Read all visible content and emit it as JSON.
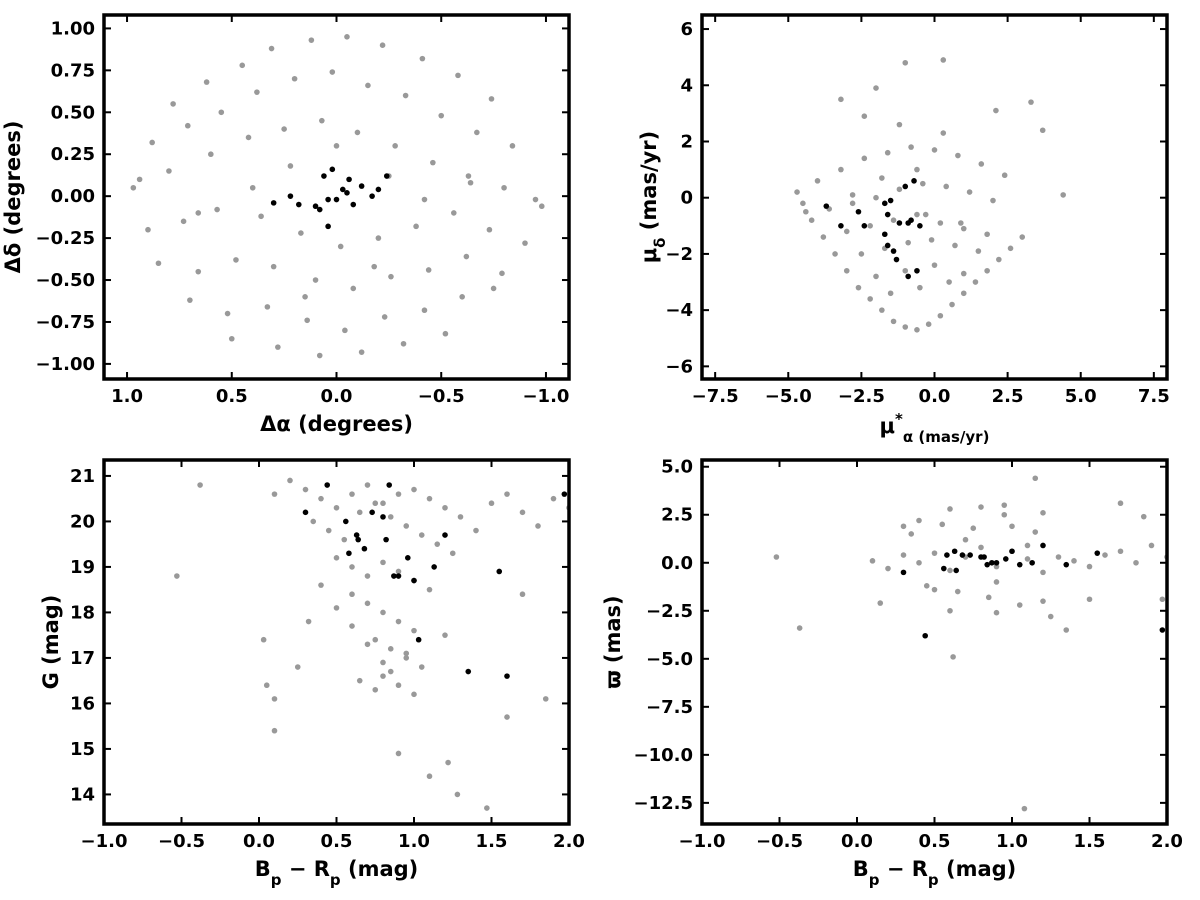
{
  "chart_data": [
    {
      "id": "p1",
      "type": "scatter",
      "xlabel": "Δα (degrees)",
      "ylabel": "Δδ (degrees)",
      "xlim": [
        1.11,
        -1.11
      ],
      "ylim": [
        -1.09,
        1.08
      ],
      "xticks": [
        1.0,
        0.5,
        0.0,
        -0.5,
        -1.0
      ],
      "xtick_labels": [
        "1.0",
        "0.5",
        "0.0",
        "−0.5",
        "−1.0"
      ],
      "yticks": [
        1.0,
        0.75,
        0.5,
        0.25,
        0.0,
        -0.25,
        -0.5,
        -0.75,
        -1.0
      ],
      "ytick_labels": [
        "1.00",
        "0.75",
        "0.50",
        "0.25",
        "0.00",
        "−0.25",
        "−0.50",
        "−0.75",
        "−1.00"
      ],
      "series": [
        {
          "color": "#999999",
          "x": [
            0.78,
            0.62,
            0.45,
            0.31,
            0.12,
            -0.05,
            -0.22,
            -0.41,
            -0.58,
            -0.74,
            0.88,
            0.71,
            0.55,
            0.38,
            0.2,
            0.02,
            -0.15,
            -0.33,
            -0.5,
            -0.67,
            -0.84,
            0.94,
            0.8,
            0.6,
            0.42,
            0.25,
            0.07,
            -0.1,
            -0.28,
            -0.46,
            -0.63,
            -0.8,
            -0.95,
            0.9,
            0.73,
            0.57,
            0.36,
            0.17,
            -0.02,
            -0.2,
            -0.38,
            -0.56,
            -0.73,
            -0.9,
            0.85,
            0.66,
            0.48,
            0.3,
            0.1,
            -0.08,
            -0.26,
            -0.44,
            -0.62,
            -0.79,
            0.7,
            0.52,
            0.33,
            0.14,
            -0.04,
            -0.23,
            -0.42,
            -0.6,
            -0.75,
            0.5,
            0.28,
            0.08,
            -0.12,
            -0.32,
            -0.52,
            0.97,
            -0.98,
            0.0,
            0.15,
            -0.18,
            0.4,
            -0.42,
            0.66,
            -0.64,
            0.22,
            -0.25
          ],
          "y": [
            0.55,
            0.68,
            0.78,
            0.88,
            0.93,
            0.95,
            0.9,
            0.82,
            0.72,
            0.58,
            0.32,
            0.42,
            0.5,
            0.62,
            0.7,
            0.74,
            0.66,
            0.6,
            0.48,
            0.38,
            0.3,
            0.1,
            0.15,
            0.25,
            0.35,
            0.4,
            0.45,
            0.38,
            0.3,
            0.2,
            0.12,
            0.05,
            -0.02,
            -0.2,
            -0.15,
            -0.08,
            -0.12,
            -0.22,
            -0.3,
            -0.25,
            -0.18,
            -0.1,
            -0.2,
            -0.28,
            -0.4,
            -0.45,
            -0.38,
            -0.42,
            -0.5,
            -0.55,
            -0.48,
            -0.44,
            -0.36,
            -0.46,
            -0.62,
            -0.7,
            -0.66,
            -0.74,
            -0.8,
            -0.72,
            -0.68,
            -0.6,
            -0.55,
            -0.85,
            -0.9,
            -0.95,
            -0.93,
            -0.88,
            -0.82,
            0.05,
            -0.06,
            0.3,
            -0.6,
            -0.42,
            0.05,
            -0.02,
            -0.1,
            0.08,
            0.18,
            0.12
          ]
        },
        {
          "color": "#000000",
          "x": [
            0.3,
            0.22,
            0.18,
            0.08,
            0.06,
            0.04,
            0.02,
            0.0,
            -0.03,
            -0.05,
            -0.08,
            -0.12,
            -0.17,
            -0.2,
            -0.24,
            0.1,
            -0.06,
            0.04
          ],
          "y": [
            -0.04,
            0.0,
            -0.05,
            -0.08,
            0.12,
            -0.18,
            0.16,
            -0.02,
            0.04,
            0.02,
            -0.05,
            0.06,
            0.0,
            0.04,
            0.12,
            -0.06,
            0.1,
            -0.02
          ]
        }
      ]
    },
    {
      "id": "p2",
      "type": "scatter",
      "xlabel": "μα* (mas/yr)",
      "ylabel": "μδ (mas/yr)",
      "xlim": [
        -7.95,
        7.95
      ],
      "ylim": [
        -6.45,
        6.5
      ],
      "xticks": [
        -7.5,
        -5.0,
        -2.5,
        0.0,
        2.5,
        5.0,
        7.5
      ],
      "xtick_labels": [
        "−7.5",
        "−5.0",
        "−2.5",
        "0.0",
        "2.5",
        "5.0",
        "7.5"
      ],
      "yticks": [
        6,
        4,
        2,
        0,
        -2,
        -4,
        -6
      ],
      "ytick_labels": [
        "6",
        "4",
        "2",
        "0",
        "−2",
        "−4",
        "−6"
      ],
      "series": [
        {
          "color": "#999999",
          "x": [
            -4.5,
            -4.2,
            -3.8,
            -3.4,
            -3.0,
            -2.6,
            -2.2,
            -1.8,
            -1.4,
            -1.0,
            -0.6,
            -0.2,
            0.2,
            0.6,
            1.0,
            1.4,
            1.8,
            2.2,
            2.6,
            3.0,
            -4.7,
            -4.0,
            -3.2,
            -2.4,
            -1.6,
            -0.8,
            0.0,
            0.8,
            1.6,
            2.4,
            -3.6,
            -2.8,
            -2.0,
            -1.2,
            -0.4,
            0.4,
            1.2,
            2.0,
            -3.0,
            -2.2,
            -1.4,
            -0.6,
            0.2,
            1.0,
            1.8,
            -2.5,
            -1.7,
            -0.9,
            -0.1,
            0.7,
            1.5,
            -2.0,
            -1.0,
            0.0,
            1.0,
            -1.5,
            -0.5,
            0.5,
            -3.2,
            -2.0,
            -1.0,
            0.3,
            3.7,
            4.4,
            3.3,
            2.1,
            0.3,
            -1.2,
            -2.4,
            -0.6,
            -1.8,
            -2.8,
            -0.3,
            0.9,
            -4.4
          ],
          "y": [
            -0.2,
            -0.8,
            -1.4,
            -2.0,
            -2.6,
            -3.2,
            -3.6,
            -4.0,
            -4.4,
            -4.6,
            -4.7,
            -4.5,
            -4.2,
            -3.8,
            -3.4,
            -3.0,
            -2.6,
            -2.2,
            -1.8,
            -1.4,
            0.2,
            0.6,
            1.0,
            1.4,
            1.6,
            1.8,
            1.7,
            1.5,
            1.2,
            0.8,
            -0.4,
            -0.2,
            0.0,
            0.3,
            0.5,
            0.4,
            0.2,
            -0.1,
            -1.2,
            -1.0,
            -0.8,
            -0.6,
            -0.9,
            -1.1,
            -1.3,
            -2.0,
            -1.8,
            -1.6,
            -1.5,
            -1.7,
            -1.9,
            -2.8,
            -2.6,
            -2.4,
            -2.7,
            -3.4,
            -3.2,
            -3.0,
            3.5,
            3.9,
            4.8,
            4.9,
            2.4,
            0.1,
            3.4,
            3.1,
            2.3,
            2.6,
            2.9,
            1.0,
            0.7,
            0.1,
            -0.6,
            -0.9,
            -0.5
          ]
        },
        {
          "color": "#000000",
          "x": [
            -3.7,
            -3.2,
            -2.6,
            -2.4,
            -1.7,
            -1.7,
            -1.6,
            -1.5,
            -1.4,
            -1.3,
            -1.2,
            -1.0,
            -0.9,
            -0.8,
            -0.7,
            -0.6,
            -0.5,
            -1.6,
            -0.9
          ],
          "y": [
            -0.3,
            -1.0,
            -0.5,
            -1.0,
            -0.2,
            -1.3,
            -1.7,
            -0.1,
            -1.9,
            -2.2,
            -0.9,
            0.4,
            -2.8,
            -0.8,
            0.6,
            -2.6,
            -1.0,
            -0.6,
            -0.9
          ]
        }
      ]
    },
    {
      "id": "p3",
      "type": "scatter",
      "xlabel": "Bp − Rp (mag)",
      "ylabel": "G (mag)",
      "xlim": [
        -1.0,
        2.0
      ],
      "ylim": [
        13.35,
        21.35
      ],
      "xticks": [
        -1.0,
        -0.5,
        0.0,
        0.5,
        1.0,
        1.5,
        2.0
      ],
      "xtick_labels": [
        "−1.0",
        "−0.5",
        "0.0",
        "0.5",
        "1.0",
        "1.5",
        "2.0"
      ],
      "yticks": [
        14,
        15,
        16,
        17,
        18,
        19,
        20,
        21
      ],
      "ytick_labels": [
        "14",
        "15",
        "16",
        "17",
        "18",
        "19",
        "20",
        "21"
      ],
      "series": [
        {
          "color": "#999999",
          "x": [
            0.1,
            0.2,
            0.3,
            0.4,
            0.5,
            0.6,
            0.7,
            0.8,
            0.9,
            1.0,
            1.1,
            1.2,
            1.3,
            1.4,
            1.5,
            1.6,
            1.7,
            1.8,
            1.9,
            2.0,
            0.35,
            0.45,
            0.55,
            0.65,
            0.75,
            0.85,
            0.95,
            1.05,
            1.15,
            1.25,
            0.5,
            0.6,
            0.7,
            0.8,
            0.9,
            1.0,
            1.1,
            0.6,
            0.7,
            0.8,
            0.9,
            1.0,
            0.75,
            0.85,
            0.95,
            1.05,
            0.8,
            0.9,
            1.0,
            1.2,
            0.4,
            0.5,
            0.6,
            0.7,
            0.8,
            0.65,
            0.75,
            0.85,
            0.95,
            -0.38,
            -0.53,
            0.03,
            0.05,
            0.1,
            0.1,
            1.1,
            1.22,
            1.28,
            1.47,
            1.6,
            1.85,
            0.9,
            0.25,
            0.32,
            1.7
          ],
          "y": [
            20.6,
            20.9,
            20.7,
            20.5,
            20.3,
            20.6,
            20.8,
            20.4,
            20.6,
            20.7,
            20.5,
            20.3,
            20.1,
            19.8,
            20.4,
            20.6,
            20.2,
            19.9,
            20.5,
            20.3,
            20.0,
            19.8,
            19.6,
            20.2,
            20.4,
            20.1,
            19.9,
            19.7,
            19.5,
            19.3,
            19.2,
            19.0,
            18.8,
            19.1,
            18.9,
            18.7,
            18.5,
            18.4,
            18.2,
            18.0,
            17.8,
            17.6,
            17.4,
            17.2,
            17.0,
            16.8,
            16.6,
            16.4,
            16.2,
            17.5,
            18.6,
            18.1,
            17.7,
            17.3,
            16.9,
            16.5,
            16.3,
            16.7,
            17.1,
            20.8,
            18.8,
            17.4,
            16.4,
            16.1,
            15.4,
            14.4,
            14.7,
            14.0,
            13.7,
            15.7,
            16.1,
            14.9,
            16.8,
            17.8,
            18.4
          ],
          "size": 2.8
        },
        {
          "color": "#000000",
          "x": [
            0.3,
            0.44,
            0.56,
            0.58,
            0.63,
            0.64,
            0.68,
            0.73,
            0.8,
            0.82,
            0.84,
            0.87,
            0.9,
            0.96,
            1.0,
            1.03,
            1.13,
            1.2,
            1.35,
            1.55,
            1.6,
            1.97
          ],
          "y": [
            20.2,
            20.8,
            20.0,
            19.3,
            19.7,
            19.6,
            19.4,
            20.2,
            20.1,
            19.6,
            20.8,
            18.8,
            18.8,
            19.2,
            18.7,
            17.4,
            19.0,
            19.7,
            16.7,
            18.9,
            16.6,
            20.6
          ]
        }
      ]
    },
    {
      "id": "p4",
      "type": "scatter",
      "xlabel": "Bp − Rp (mag)",
      "ylabel": "ϖ (mas)",
      "xlim": [
        -1.0,
        2.0
      ],
      "ylim": [
        -13.6,
        5.35
      ],
      "xticks": [
        -1.0,
        -0.5,
        0.0,
        0.5,
        1.0,
        1.5,
        2.0
      ],
      "xtick_labels": [
        "−1.0",
        "−0.5",
        "0.0",
        "0.5",
        "1.0",
        "1.5",
        "2.0"
      ],
      "yticks": [
        5.0,
        2.5,
        0.0,
        -2.5,
        -5.0,
        -7.5,
        -10.0,
        -12.5
      ],
      "ytick_labels": [
        "5.0",
        "2.5",
        "0.0",
        "−2.5",
        "−5.0",
        "−7.5",
        "−10.0",
        "−12.5"
      ],
      "series": [
        {
          "color": "#999999",
          "x": [
            0.1,
            0.2,
            0.3,
            0.4,
            0.5,
            0.6,
            0.7,
            0.8,
            0.9,
            1.0,
            1.1,
            1.2,
            1.3,
            1.4,
            1.5,
            1.6,
            1.7,
            1.8,
            1.9,
            2.0,
            0.35,
            0.45,
            0.55,
            0.65,
            0.75,
            0.85,
            0.95,
            1.05,
            1.15,
            1.25,
            0.4,
            0.6,
            0.8,
            1.0,
            1.2,
            0.5,
            0.7,
            0.9,
            1.1,
            0.3,
            0.6,
            0.9,
            1.2,
            1.5,
            -0.52,
            -0.37,
            0.15,
            0.62,
            1.08,
            1.35,
            1.7,
            1.85,
            1.97,
            0.95,
            1.15
          ],
          "y": [
            0.1,
            -0.3,
            0.4,
            0.0,
            0.5,
            -0.4,
            0.3,
            0.8,
            -0.2,
            0.6,
            0.2,
            -0.5,
            0.3,
            0.1,
            -0.2,
            0.4,
            0.6,
            0.0,
            0.9,
            0.3,
            1.5,
            -1.2,
            2.0,
            -1.5,
            1.8,
            -1.8,
            2.5,
            -2.2,
            1.6,
            -2.8,
            2.2,
            -2.5,
            2.9,
            1.9,
            -2.0,
            -1.4,
            1.2,
            -1.0,
            0.9,
            1.9,
            2.8,
            -2.6,
            2.6,
            -1.9,
            0.3,
            -3.4,
            -2.1,
            -4.9,
            -12.8,
            -3.5,
            3.1,
            2.4,
            -1.9,
            3.0,
            4.4
          ],
          "size": 2.8
        },
        {
          "color": "#000000",
          "x": [
            0.3,
            0.44,
            0.56,
            0.58,
            0.63,
            0.64,
            0.68,
            0.73,
            0.8,
            0.82,
            0.84,
            0.87,
            0.9,
            0.96,
            1.0,
            1.05,
            1.13,
            1.2,
            1.35,
            1.55,
            1.97
          ],
          "y": [
            -0.5,
            -3.8,
            -0.3,
            0.4,
            0.6,
            -0.4,
            0.4,
            0.4,
            0.3,
            0.3,
            -0.1,
            0.0,
            0.0,
            0.2,
            0.6,
            -0.1,
            0.0,
            0.9,
            -0.1,
            0.5,
            -3.5
          ]
        }
      ]
    }
  ]
}
